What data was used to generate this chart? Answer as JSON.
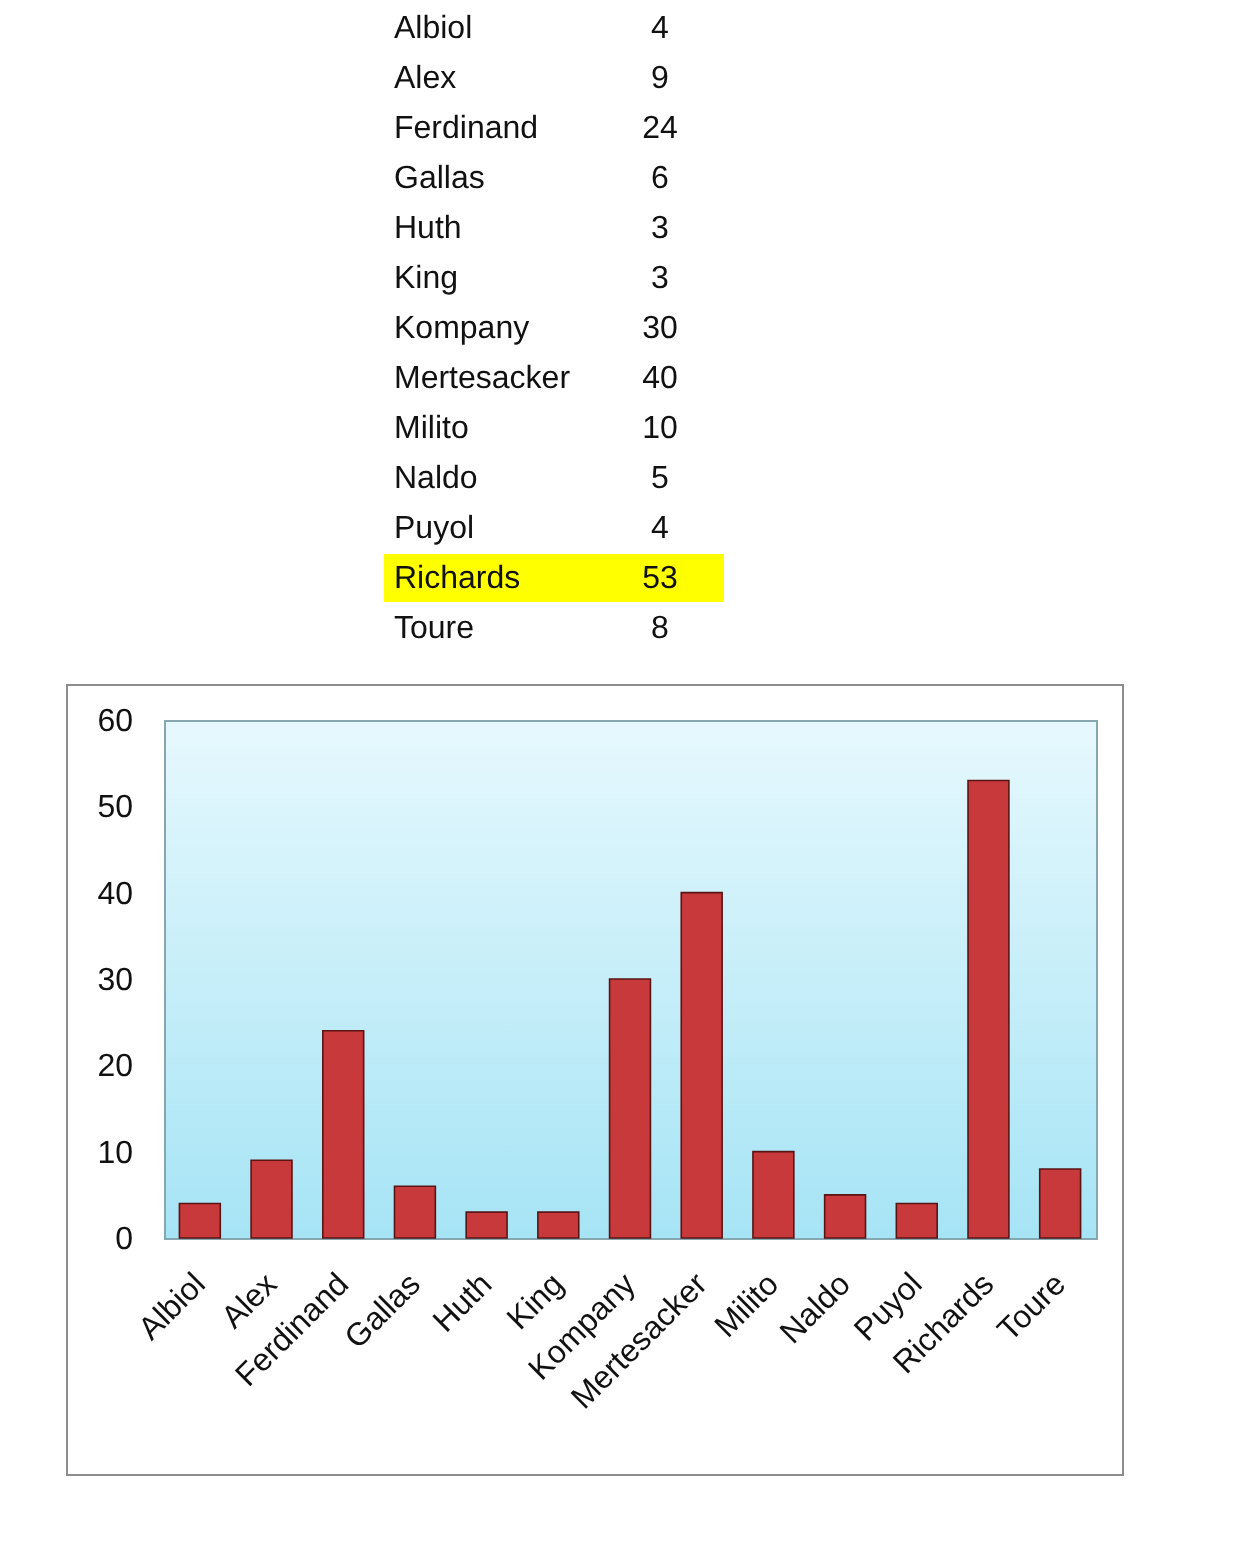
{
  "chart_data": [
    {
      "type": "other",
      "categories": [
        "Albiol",
        "Alex",
        "Ferdinand",
        "Gallas",
        "Huth",
        "King",
        "Kompany",
        "Mertesacker",
        "Milito",
        "Naldo",
        "Puyol",
        "Richards",
        "Toure"
      ],
      "values": [
        4,
        9,
        24,
        6,
        3,
        3,
        30,
        40,
        10,
        5,
        4,
        53,
        8
      ],
      "data_labels": true
    },
    {
      "type": "bar",
      "categories": [
        "Albiol",
        "Alex",
        "Ferdinand",
        "Gallas",
        "Huth",
        "King",
        "Kompany",
        "Mertesacker",
        "Milito",
        "Naldo",
        "Puyol",
        "Richards",
        "Toure"
      ],
      "values": [
        4,
        9,
        24,
        6,
        3,
        3,
        30,
        40,
        10,
        5,
        4,
        53,
        8
      ],
      "color": "#c8393b",
      "ylim": [
        0,
        60
      ],
      "yticks": [
        0,
        10,
        20,
        30,
        40,
        50,
        60
      ]
    }
  ]
}
